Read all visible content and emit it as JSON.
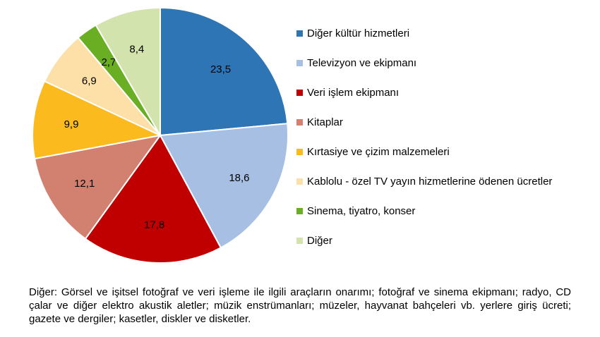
{
  "chart_data": {
    "type": "pie",
    "slices": [
      {
        "label": "Diğer kültür hizmetleri",
        "value": 23.5,
        "value_label": "23,5",
        "color": "#2E75B6"
      },
      {
        "label": "Televizyon ve ekipmanı",
        "value": 18.6,
        "value_label": "18,6",
        "color": "#A6BFE3"
      },
      {
        "label": "Veri işlem ekipmanı",
        "value": 17.8,
        "value_label": "17,8",
        "color": "#C00000"
      },
      {
        "label": "Kitaplar",
        "value": 12.1,
        "value_label": "12,1",
        "color": "#D2806F"
      },
      {
        "label": "Kırtasiye ve çizim malzemeleri",
        "value": 9.9,
        "value_label": "9,9",
        "color": "#FBBA1E"
      },
      {
        "label": "Kablolu - özel TV yayın hizmetlerine ödenen ücretler",
        "value": 6.9,
        "value_label": "6,9",
        "color": "#FCE0A8"
      },
      {
        "label": "Sinema, tiyatro, konser",
        "value": 2.7,
        "value_label": "2,7",
        "color": "#6AAF23"
      },
      {
        "label": "Diğer",
        "value": 8.4,
        "value_label": "8,4",
        "color": "#D3E3AE"
      }
    ],
    "legend_position": "right"
  },
  "note": "Diğer: Görsel ve işitsel fotoğraf ve veri işleme ile ilgili araçların onarımı; fotoğraf ve sinema ekipmanı; radyo, CD çalar ve diğer elektro akustik aletler; müzik enstrümanları; müzeler, hayvanat bahçeleri vb. yerlere giriş ücreti; gazete ve dergiler; kasetler, diskler ve disketler."
}
